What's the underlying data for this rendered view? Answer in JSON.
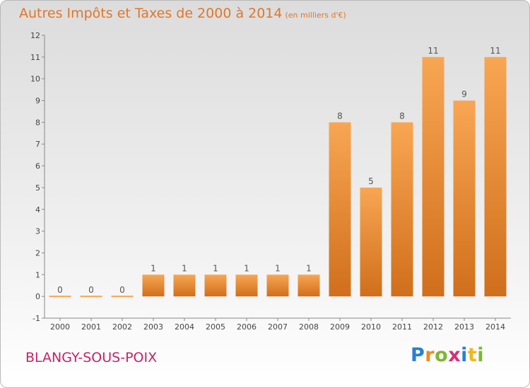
{
  "header": {
    "title": "Autres Impôts et Taxes de 2000 à 2014",
    "subtitle": "(en milliers d'€)"
  },
  "footer": {
    "commune": "BLANGY-SOUS-POIX",
    "logo_text": "Proxiti"
  },
  "chart_data": {
    "type": "bar",
    "title": "Autres Impôts et Taxes de 2000 à 2014",
    "subtitle": "(en milliers d'€)",
    "xlabel": "",
    "ylabel": "",
    "categories": [
      "2000",
      "2001",
      "2002",
      "2003",
      "2004",
      "2005",
      "2006",
      "2007",
      "2008",
      "2009",
      "2010",
      "2011",
      "2012",
      "2013",
      "2014"
    ],
    "values": [
      0,
      0,
      0,
      1,
      1,
      1,
      1,
      1,
      1,
      8,
      5,
      8,
      11,
      9,
      11
    ],
    "ylim": [
      -1,
      12
    ],
    "yticks": [
      -1,
      0,
      1,
      2,
      3,
      4,
      5,
      6,
      7,
      8,
      9,
      10,
      11,
      12
    ],
    "grid": false,
    "legend": "none",
    "colors": {
      "bar_light": "#f8a653",
      "bar_dark": "#d06f1b",
      "label": "#555555",
      "axis": "#888888"
    }
  }
}
